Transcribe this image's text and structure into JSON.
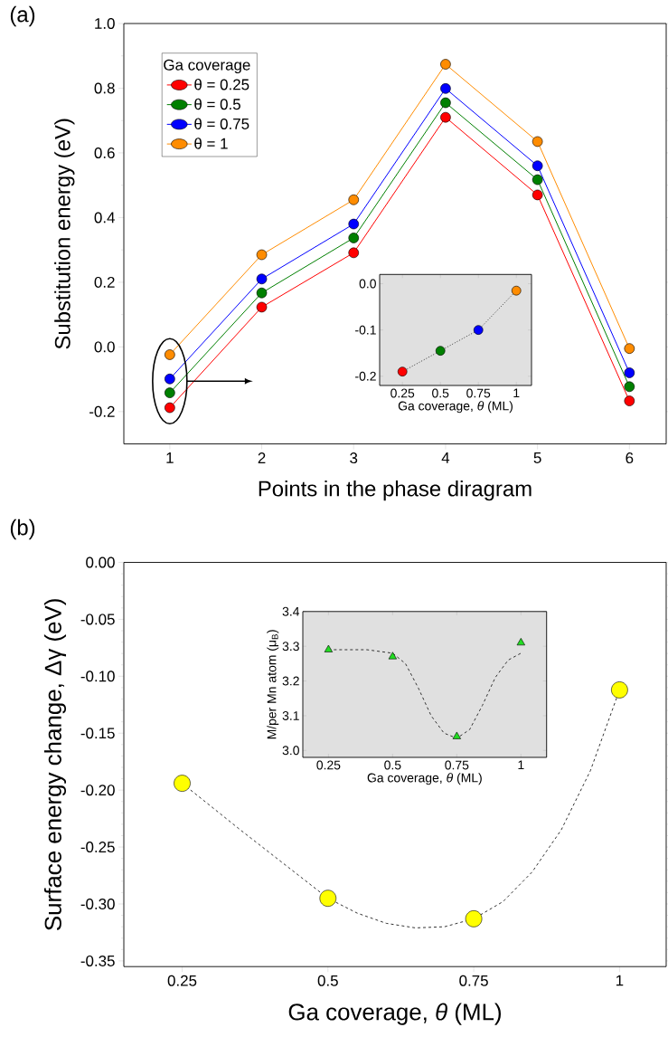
{
  "chart_data": [
    {
      "type": "line",
      "xlabel": "Points in the phase diragram",
      "ylabel": "Substitution energy (eV)",
      "legend_title": "Ga coverage",
      "annotations": [
        "(a)"
      ],
      "legend": "top left",
      "marker": "circle",
      "x": [
        1,
        2,
        3,
        4,
        5,
        6
      ],
      "xlim": [
        0.5,
        6.4
      ],
      "xticks": [
        1,
        2,
        3,
        4,
        5,
        6
      ],
      "ylim": [
        -0.3,
        1.0
      ],
      "yticks": [
        -0.2,
        {
          "value": 0,
          "label": "0.0"
        },
        0.2,
        0.4,
        0.6,
        0.8,
        {
          "value": 1,
          "label": "1.0"
        },
        {
          "value": -0.1,
          "label": null
        },
        {
          "value": 0.1,
          "label": null
        },
        {
          "value": 0.3,
          "label": null
        },
        {
          "value": 0.5,
          "label": null
        },
        {
          "value": 0.7,
          "label": null
        },
        {
          "value": 0.9,
          "label": null
        }
      ],
      "series": [
        {
          "name": "θ = 0.25",
          "color": "#ff0000",
          "values": [
            -0.188,
            0.123,
            0.291,
            0.71,
            0.47,
            -0.167
          ]
        },
        {
          "name": "θ = 0.5",
          "color": "#008000",
          "values": [
            -0.142,
            0.167,
            0.337,
            0.755,
            0.517,
            -0.123
          ]
        },
        {
          "name": "θ = 0.75",
          "color": "#0000ff",
          "values": [
            -0.099,
            0.21,
            0.38,
            0.799,
            0.56,
            -0.08
          ]
        },
        {
          "name": "θ = 1",
          "color": "#ff8c00",
          "values": [
            -0.024,
            0.285,
            0.455,
            0.874,
            0.635,
            -0.005
          ]
        }
      ]
    },
    {
      "type": "line",
      "xlabel": "Ga coverage, *θ* (ML)",
      "marker": "circle",
      "line_style": "dotted",
      "x": [
        0.25,
        0.5,
        0.75,
        1
      ],
      "xlim": [
        0.1,
        1.1
      ],
      "xticks": [
        0.25,
        0.5,
        0.75,
        1
      ],
      "ylim": [
        -0.22,
        0.02
      ],
      "yticks": [
        -0.2,
        -0.1,
        {
          "value": 0,
          "label": "0.0"
        }
      ],
      "series": [
        {
          "color": "#333333",
          "colors": [
            "#ff0000",
            "#008000",
            "#0000ff",
            "#ff8c00"
          ],
          "values": [
            -0.19,
            -0.145,
            -0.1,
            -0.015
          ]
        }
      ]
    },
    {
      "type": "scatter",
      "xlabel": "Ga coverage, *θ* (ML)",
      "ylabel": "Surface energy change, Δγ (eV)",
      "annotations": [
        "(b)"
      ],
      "x": [
        0.25,
        0.5,
        0.75,
        1
      ],
      "xlim": [
        0.15,
        1.08
      ],
      "xticks": [
        0.25,
        0.5,
        0.75,
        1
      ],
      "ylim": [
        -0.355,
        0
      ],
      "yticks": [
        {
          "value": 0,
          "label": "0.00"
        },
        {
          "value": -0.05,
          "label": "-0.05"
        },
        {
          "value": -0.1,
          "label": "-0.10"
        },
        {
          "value": -0.15,
          "label": "-0.15"
        },
        {
          "value": -0.2,
          "label": "-0.20"
        },
        {
          "value": -0.25,
          "label": "-0.25"
        },
        {
          "value": -0.3,
          "label": "-0.30"
        },
        {
          "value": -0.35,
          "label": "-0.35"
        },
        {
          "value": -0.01,
          "label": null
        },
        {
          "value": -0.02,
          "label": null
        },
        {
          "value": -0.03,
          "label": null
        },
        {
          "value": -0.04,
          "label": null
        },
        {
          "value": -0.06,
          "label": null
        },
        {
          "value": -0.07,
          "label": null
        },
        {
          "value": -0.08,
          "label": null
        },
        {
          "value": -0.09,
          "label": null
        },
        {
          "value": -0.11,
          "label": null
        },
        {
          "value": -0.12,
          "label": null
        },
        {
          "value": -0.13,
          "label": null
        },
        {
          "value": -0.14,
          "label": null
        },
        {
          "value": -0.16,
          "label": null
        },
        {
          "value": -0.17,
          "label": null
        },
        {
          "value": -0.18,
          "label": null
        },
        {
          "value": -0.19,
          "label": null
        },
        {
          "value": -0.21,
          "label": null
        },
        {
          "value": -0.22,
          "label": null
        },
        {
          "value": -0.23,
          "label": null
        },
        {
          "value": -0.24,
          "label": null
        },
        {
          "value": -0.26,
          "label": null
        },
        {
          "value": -0.27,
          "label": null
        },
        {
          "value": -0.28,
          "label": null
        },
        {
          "value": -0.29,
          "label": null
        },
        {
          "value": -0.31,
          "label": null
        },
        {
          "value": -0.32,
          "label": null
        },
        {
          "value": -0.33,
          "label": null
        },
        {
          "value": -0.34,
          "label": null
        }
      ],
      "series": [
        {
          "type": "line",
          "color": "#333333",
          "line_style": "dashed",
          "marker": "none",
          "x": [
            0.25,
            0.35,
            0.45,
            0.5,
            0.55,
            0.6,
            0.65,
            0.7,
            0.75,
            0.8,
            0.85,
            0.9,
            0.95,
            1.0
          ],
          "values": [
            -0.194,
            -0.235,
            -0.275,
            -0.295,
            -0.308,
            -0.317,
            -0.321,
            -0.32,
            -0.313,
            -0.298,
            -0.272,
            -0.235,
            -0.183,
            -0.112
          ]
        },
        {
          "type": "scatter",
          "color": "#ffff00",
          "marker": "circle",
          "values": [
            -0.194,
            -0.295,
            -0.313,
            -0.112
          ]
        }
      ]
    },
    {
      "type": "scatter",
      "xlabel": "Ga coverage, *θ* (ML)",
      "ylabel": "M/per Mn atom (μ$_{B}$)",
      "x": [
        0.25,
        0.5,
        0.75,
        1
      ],
      "xlim": [
        0.15,
        1.1
      ],
      "xticks": [
        0.25,
        0.5,
        0.75,
        1
      ],
      "ylim": [
        2.98,
        3.4
      ],
      "yticks": [
        {
          "value": 3,
          "label": "3.0"
        },
        3.1,
        3.2,
        3.3,
        3.4
      ],
      "series": [
        {
          "type": "line",
          "color": "#333333",
          "line_style": "dashed",
          "marker": "none",
          "x": [
            0.25,
            0.4,
            0.5,
            0.55,
            0.6,
            0.65,
            0.7,
            0.75,
            0.8,
            0.85,
            0.9,
            0.95,
            1.0
          ],
          "values": [
            3.29,
            3.29,
            3.28,
            3.25,
            3.18,
            3.1,
            3.05,
            3.035,
            3.06,
            3.13,
            3.21,
            3.26,
            3.28
          ]
        },
        {
          "type": "scatter",
          "color": "#22dd22",
          "marker": "triangle",
          "values": [
            3.29,
            3.27,
            3.04,
            3.31
          ]
        }
      ]
    }
  ]
}
